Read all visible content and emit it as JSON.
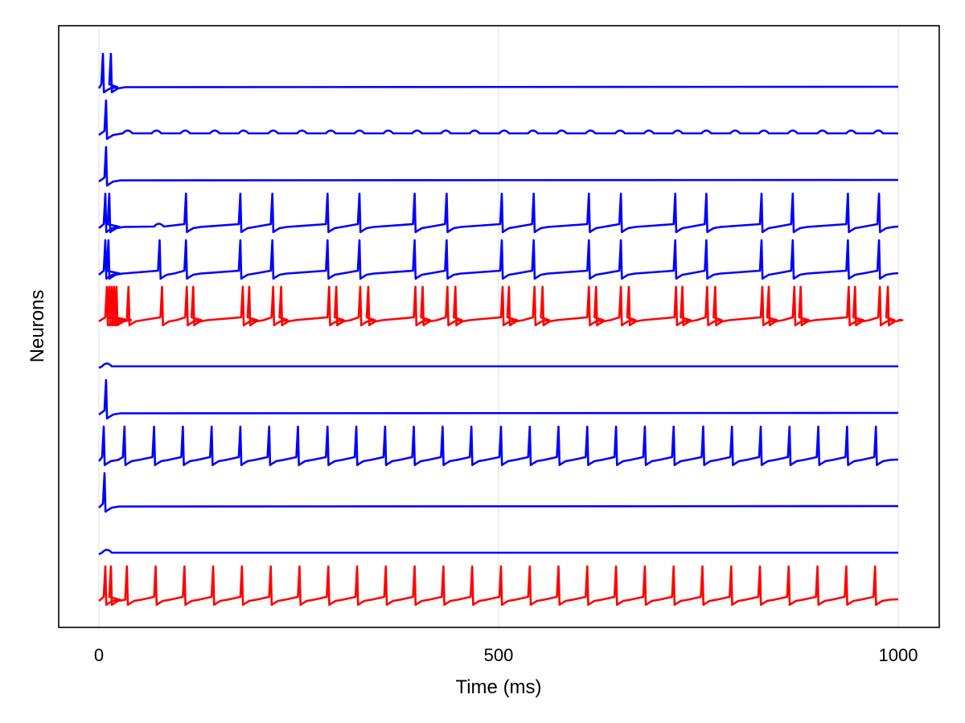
{
  "chart_data": {
    "type": "line",
    "title": "",
    "xlabel": "Time (ms)",
    "ylabel": "Neurons",
    "xlim": [
      0,
      1000
    ],
    "xticks": [
      0,
      500,
      1000
    ],
    "xtick_labels": [
      "0",
      "500",
      "1000"
    ],
    "grid": "x-only",
    "legend": "none",
    "colors": {
      "excitatory": "#0000ff",
      "inhibitory": "#ff0000"
    },
    "series": [
      {
        "color": "#0000ff",
        "spikes": [
          5,
          15
        ],
        "sub": []
      },
      {
        "color": "#0000ff",
        "spikes": [
          9
        ],
        "sub": [
          36,
          72,
          108,
          145,
          181,
          218,
          254,
          290,
          326,
          362,
          398,
          434,
          470,
          507,
          543,
          579,
          615,
          652,
          688,
          724,
          760,
          796,
          832,
          868,
          905,
          941,
          975
        ]
      },
      {
        "color": "#0000ff",
        "spikes": [
          9
        ],
        "sub": []
      },
      {
        "color": "#0000ff",
        "spikes": [
          8,
          13,
          109,
          177,
          217,
          286,
          326,
          395,
          435,
          504,
          544,
          613,
          653,
          721,
          760,
          829,
          868,
          937,
          976
        ],
        "sub": [
          75
        ]
      },
      {
        "color": "#0000ff",
        "spikes": [
          8,
          12,
          76,
          109,
          177,
          217,
          286,
          326,
          395,
          435,
          504,
          544,
          613,
          653,
          721,
          760,
          829,
          868,
          937,
          976
        ],
        "sub": []
      },
      {
        "color": "#ff0000",
        "spikes": [
          10,
          13,
          16,
          19,
          22,
          37,
          79,
          110,
          118,
          180,
          188,
          218,
          228,
          288,
          297,
          327,
          337,
          396,
          405,
          436,
          446,
          505,
          513,
          545,
          555,
          613,
          622,
          653,
          663,
          722,
          730,
          761,
          771,
          830,
          838,
          870,
          878,
          938,
          946,
          977,
          987
        ],
        "sub": []
      },
      {
        "color": "#0000ff",
        "spikes": [],
        "sub": [
          10
        ]
      },
      {
        "color": "#0000ff",
        "spikes": [
          9
        ],
        "sub": []
      },
      {
        "color": "#0000ff",
        "spikes": [
          6,
          32,
          69,
          105,
          141,
          177,
          213,
          249,
          286,
          322,
          358,
          394,
          430,
          466,
          503,
          539,
          575,
          611,
          647,
          683,
          719,
          756,
          792,
          828,
          864,
          900,
          936,
          972
        ],
        "sub": []
      },
      {
        "color": "#0000ff",
        "spikes": [
          7
        ],
        "sub": []
      },
      {
        "color": "#0000ff",
        "spikes": [],
        "sub": [
          10
        ]
      },
      {
        "color": "#ff0000",
        "spikes": [
          8,
          15,
          35,
          71,
          107,
          143,
          179,
          215,
          251,
          287,
          323,
          359,
          395,
          431,
          467,
          503,
          539,
          575,
          611,
          647,
          683,
          719,
          755,
          791,
          827,
          863,
          899,
          935,
          971
        ],
        "sub": []
      }
    ]
  }
}
